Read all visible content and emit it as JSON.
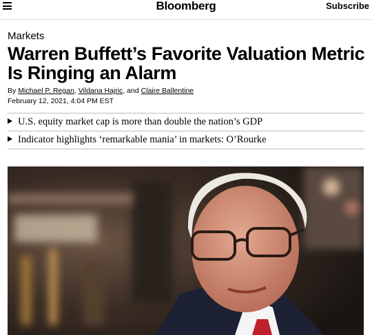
{
  "header": {
    "logo": "Bloomberg",
    "subscribe": "Subscribe"
  },
  "article": {
    "category": "Markets",
    "title": "Warren Buffett’s Favorite Valuation Metric Is Ringing an Alarm",
    "byline": {
      "prefix": "By",
      "authors": [
        "Michael P. Regan",
        "Vildana Hajric",
        "Claire Ballentine"
      ],
      "separators": [
        ",",
        ", and"
      ]
    },
    "date": "February 12, 2021, 4:04 PM EST",
    "bullets": [
      "U.S. equity market cap is more than double the nation’s GDP",
      "Indicator highlights ‘remarkable mania’ in markets: O’Rourke"
    ]
  }
}
